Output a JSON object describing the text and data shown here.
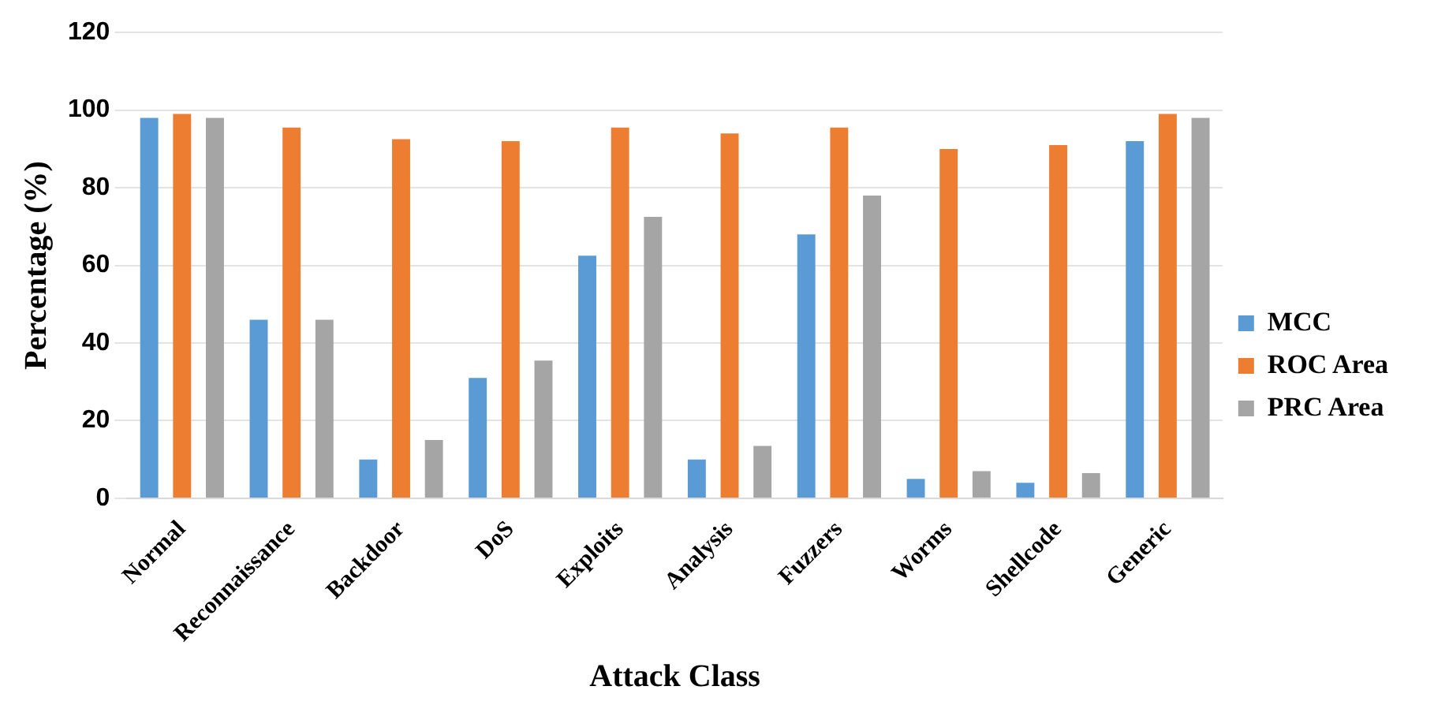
{
  "chart_data": {
    "type": "bar",
    "xlabel": "Attack Class",
    "ylabel": "Percentage (%)",
    "categories": [
      "Normal",
      "Reconnaissance",
      "Backdoor",
      "DoS",
      "Exploits",
      "Analysis",
      "Fuzzers",
      "Worms",
      "Shellcode",
      "Generic"
    ],
    "series": [
      {
        "name": "MCC",
        "color": "#5b9bd5",
        "values": [
          98,
          46,
          10,
          31,
          62.5,
          10,
          68,
          5,
          4,
          92
        ]
      },
      {
        "name": "ROC Area",
        "color": "#ed7d31",
        "values": [
          99,
          95.5,
          92.5,
          92,
          95.5,
          94,
          95.5,
          90,
          91,
          99
        ]
      },
      {
        "name": "PRC Area",
        "color": "#a5a5a5",
        "values": [
          98,
          46,
          15,
          35.5,
          72.5,
          13.5,
          78,
          7,
          6.5,
          98
        ]
      }
    ],
    "ylim": [
      0,
      120
    ],
    "yticks": [
      0,
      20,
      40,
      60,
      80,
      100,
      120
    ],
    "grid": "y",
    "legend": "right"
  }
}
